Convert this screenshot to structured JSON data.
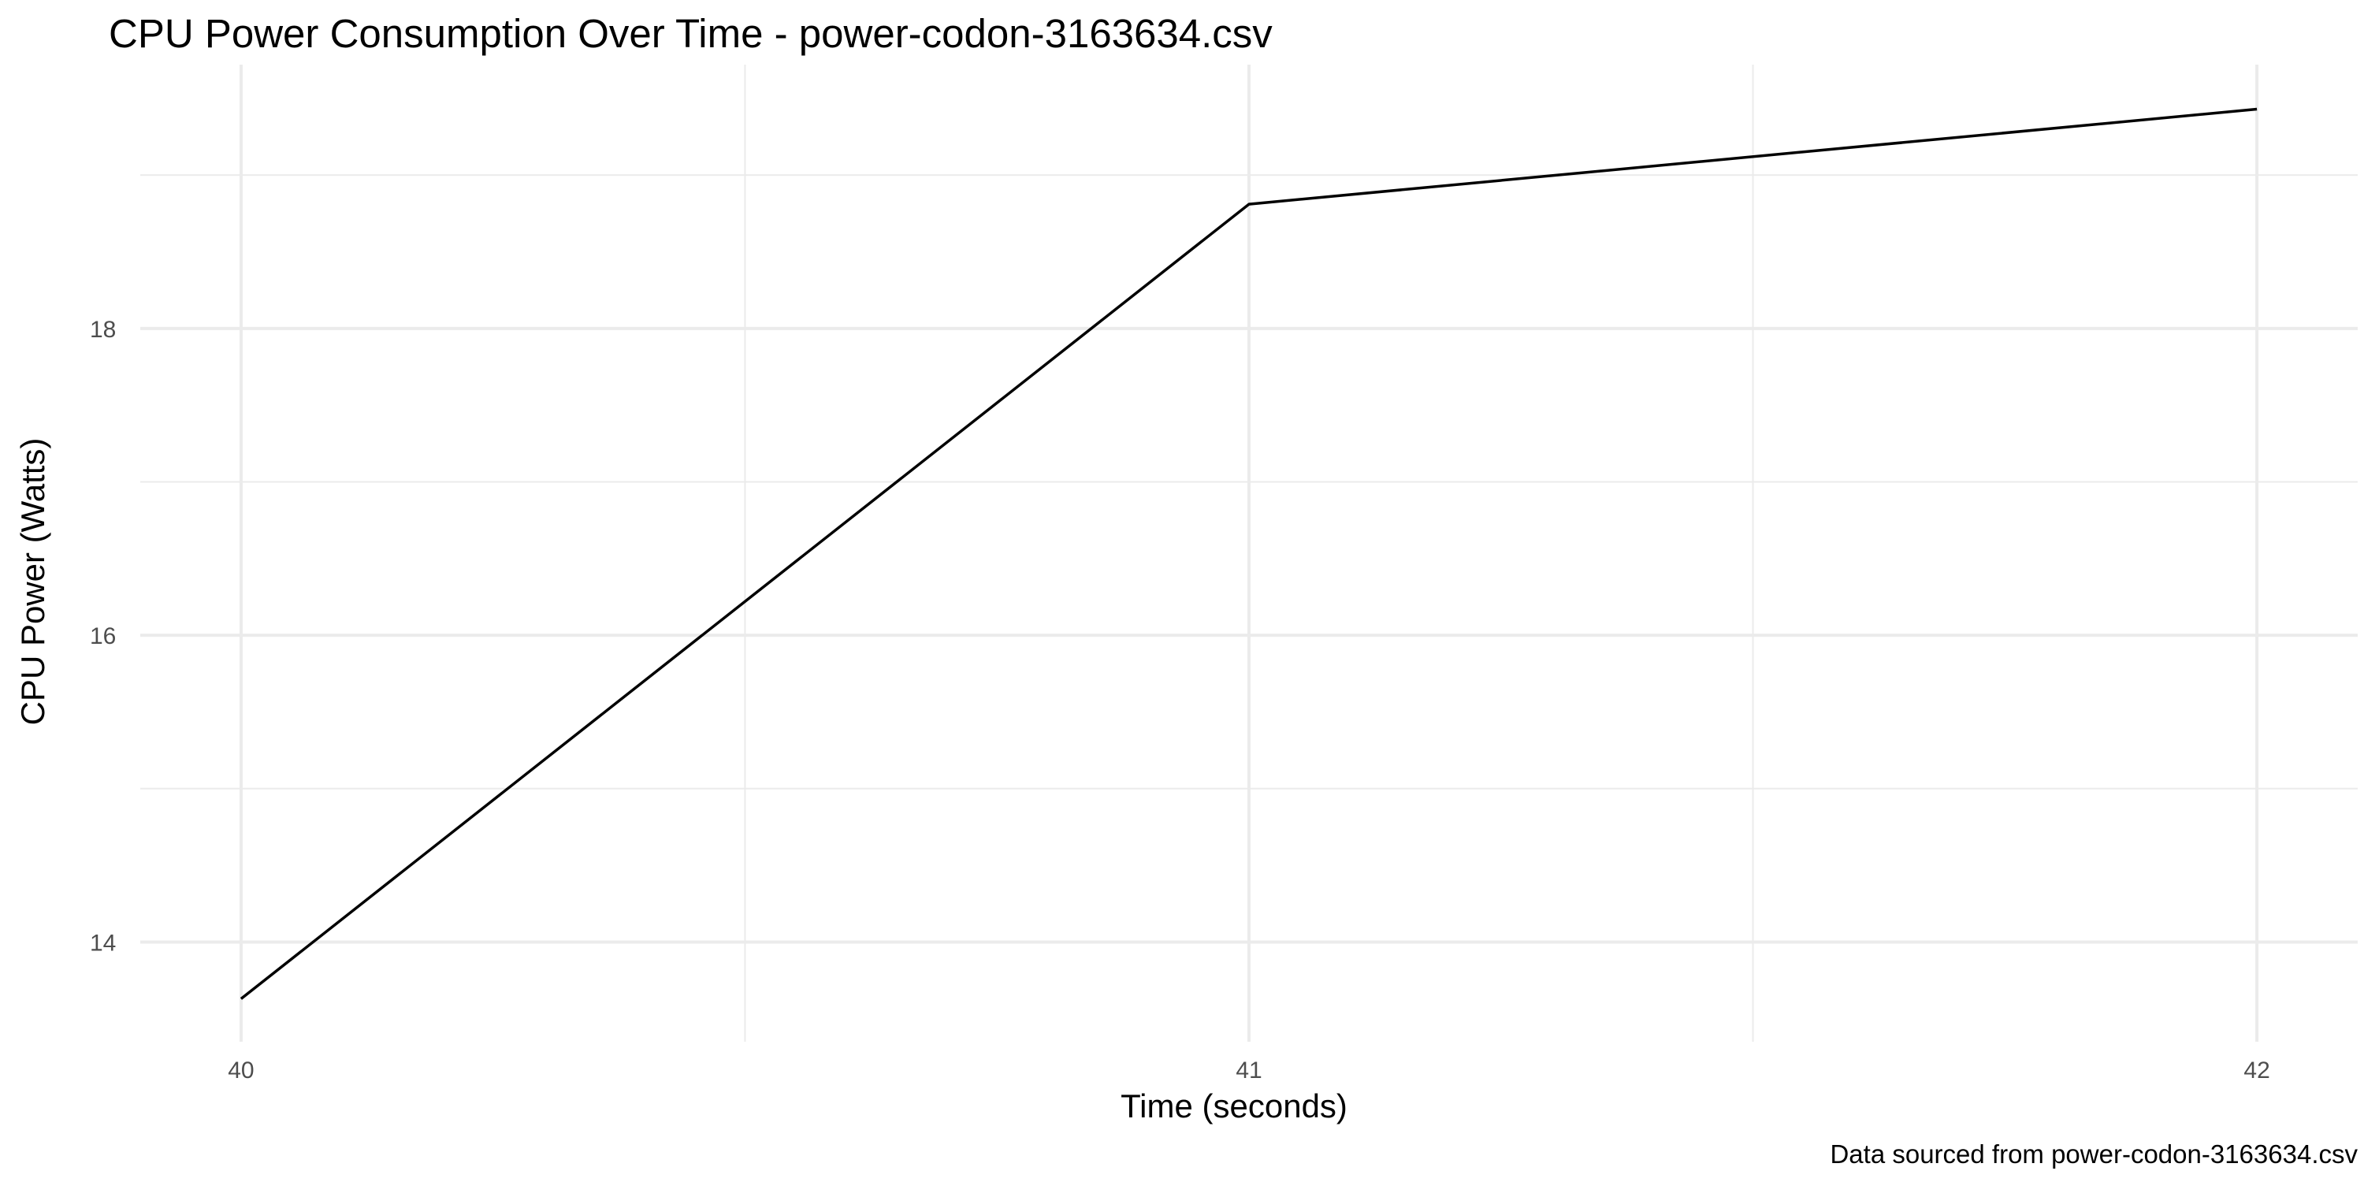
{
  "chart_data": {
    "type": "line",
    "title": "CPU Power Consumption Over Time - power-codon-3163634.csv",
    "xlabel": "Time (seconds)",
    "ylabel": "CPU Power (Watts)",
    "caption": "Data sourced from power-codon-3163634.csv",
    "x": [
      40,
      41,
      42
    ],
    "series": [
      {
        "values": [
          13.63,
          18.81,
          19.43
        ]
      }
    ],
    "xlim": [
      39.9,
      42.1
    ],
    "ylim": [
      13.35,
      19.72
    ],
    "x_ticks": [
      40,
      41,
      42
    ],
    "x_tick_labels": [
      "40",
      "41",
      "42"
    ],
    "x_minor_ticks": [
      40.5,
      41.5
    ],
    "y_ticks": [
      14,
      16,
      18
    ],
    "y_tick_labels": [
      "14",
      "16",
      "18"
    ],
    "y_minor_ticks": [
      15,
      17,
      19
    ],
    "grid": true,
    "legend": "none",
    "colors": {
      "line": "#000000",
      "grid": "#ebebeb",
      "tick_text": "#4d4d4d"
    }
  }
}
